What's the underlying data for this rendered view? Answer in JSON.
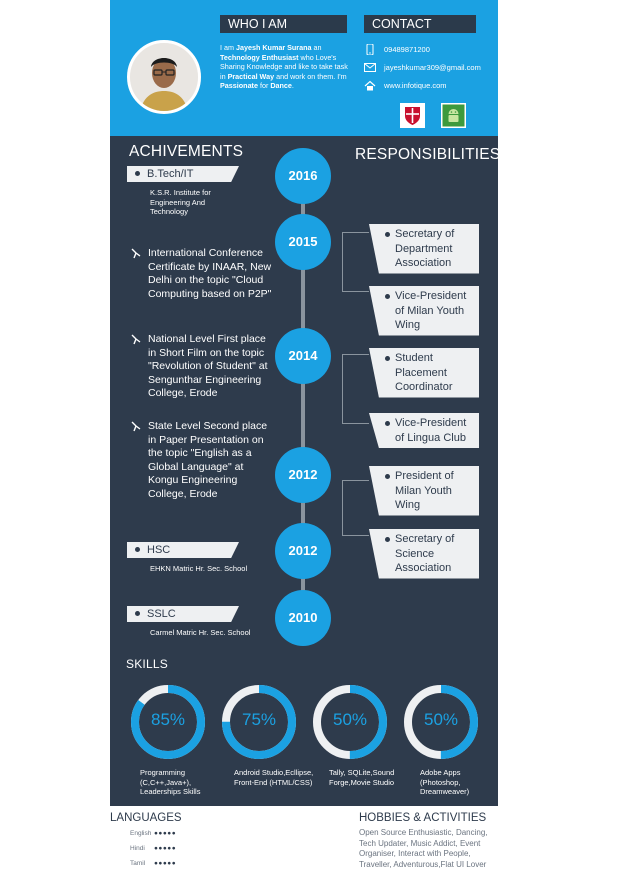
{
  "header": {
    "who_title": "WHO I AM",
    "contact_title": "CONTACT",
    "about": {
      "p1": "I am ",
      "name": "Jayesh Kumar Surana",
      "p2": " an ",
      "b2": "Technology Enthusiast",
      "p3": " who Love's Sharing Knowledge and like to take task in ",
      "b3": "Practical Way",
      "p4": " and work on them. I'm ",
      "b4": "Passionate",
      "p5": " for ",
      "b5": "Dance",
      "p6": "."
    },
    "contact": {
      "phone": "09489871200",
      "email": "jayeshkumar309@gmail.com",
      "web": "www.infotique.com"
    }
  },
  "sections": {
    "achievements": "ACHIVEMENTS",
    "responsibilities": "RESPONSIBILITIES",
    "skills": "SKILLS"
  },
  "timeline": {
    "years": [
      "2016",
      "2015",
      "2014",
      "2012",
      "2012",
      "2010"
    ]
  },
  "education": [
    {
      "title": "B.Tech/IT",
      "sub": "K.S.R. Institute for Engineering And Technology"
    },
    {
      "title": "HSC",
      "sub": "EHKN Matric Hr. Sec. School"
    },
    {
      "title": "SSLC",
      "sub": "Carmel Matric Hr. Sec. School"
    }
  ],
  "achievements": [
    "International Conference Certificate by INAAR, New Delhi on the topic \"Cloud Computing based on P2P\"",
    "National Level First place in Short Film on the topic \"Revolution of Student\" at Sengunthar Engineering College, Erode",
    "State Level Second place in Paper Presentation on the topic \"English as a Global Language\" at Kongu Engineering College, Erode"
  ],
  "responsibilities": [
    "Secretary of Department Association",
    "Vice-President of Milan Youth Wing",
    "Student Placement Coordinator",
    "Vice-President of Lingua Club",
    "President of Milan Youth Wing",
    "Secretary of Science Association"
  ],
  "skills": [
    {
      "pct": "85%",
      "value": 85,
      "label": "Programming (C,C++,Java+), Leaderships Skills"
    },
    {
      "pct": "75%",
      "value": 75,
      "label": "Android Studio,Ecllipse, Front-End (HTML/CSS)"
    },
    {
      "pct": "50%",
      "value": 50,
      "label": "Tally, SQLite,Sound Forge,Movie Studio"
    },
    {
      "pct": "50%",
      "value": 50,
      "label": "Adobe Apps (Photoshop, Dreamweaver)"
    }
  ],
  "languages": {
    "title": "LANGUAGES",
    "items": [
      {
        "name": "English",
        "stars": "●●●●●"
      },
      {
        "name": "Hindi",
        "stars": "●●●●●"
      },
      {
        "name": "Tamil",
        "stars": "●●●●●"
      }
    ]
  },
  "hobbies": {
    "title": "HOBBIES & ACTIVITIES",
    "text": "Open Source Enthusiastic, Dancing, Tech Updater, Music Addict, Event Organiser, Interact with People, Traveller, Adventurous,Flat UI Lover"
  },
  "colors": {
    "accent": "#1ba1e2",
    "dark": "#2e3b4c",
    "light": "#eef0f2"
  }
}
